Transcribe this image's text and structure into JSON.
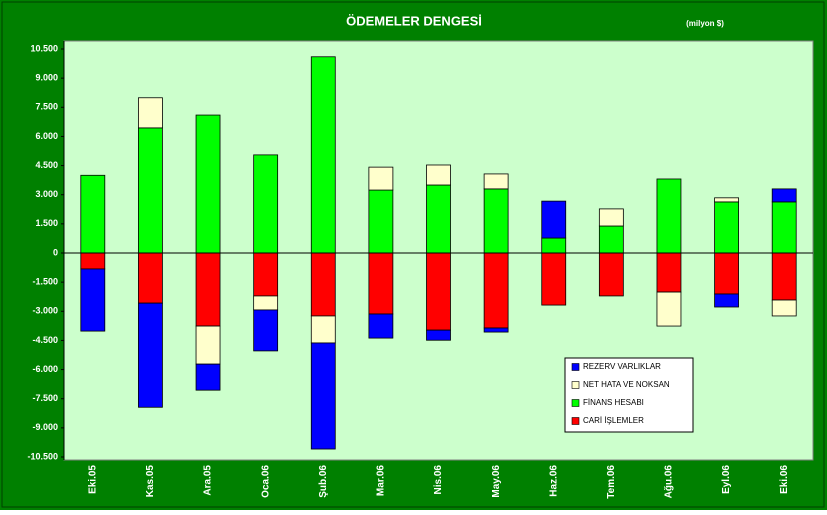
{
  "chart_data": {
    "type": "stacked_bar",
    "title": "ÖDEMELER DENGESİ",
    "subtitle": "(milyon $)",
    "categories": [
      "Eki.05",
      "Kas.05",
      "Ara.05",
      "Oca.06",
      "Şub.06",
      "Mar.06",
      "Nis.06",
      "May.06",
      "Haz.06",
      "Tem.06",
      "Ağu.06",
      "Eyl.06",
      "Eki.06"
    ],
    "series": [
      {
        "name": "CARİ İŞLEMLER",
        "color": "#ff0000",
        "values": [
          -820,
          -2580,
          -3760,
          -2210,
          -3240,
          -3140,
          -3970,
          -3860,
          -2680,
          -2210,
          -2010,
          -2110,
          -2420
        ]
      },
      {
        "name": "FİNANS HESABI",
        "color": "#00ff00",
        "values": [
          4000,
          6440,
          7100,
          5050,
          10100,
          3240,
          3500,
          3300,
          770,
          1390,
          3810,
          2630,
          2630
        ]
      },
      {
        "name": "NET HATA VE NOKSAN",
        "color": "#ffffcc",
        "values": [
          0,
          1550,
          -1960,
          -720,
          -1390,
          1180,
          1030,
          770,
          0,
          880,
          -1750,
          210,
          -820
        ]
      },
      {
        "name": "REZERV VARLIKLAR",
        "color": "#0000ff",
        "values": [
          -3200,
          -5360,
          -1340,
          -2110,
          -5460,
          -1240,
          -520,
          -210,
          1900,
          0,
          0,
          -670,
          670
        ]
      }
    ],
    "ylim": [
      -10500,
      10500
    ],
    "yticks": [
      {
        "value": 10500,
        "label": "10.500"
      },
      {
        "value": 9000,
        "label": "9.000"
      },
      {
        "value": 7500,
        "label": "7.500"
      },
      {
        "value": 6000,
        "label": "6.000"
      },
      {
        "value": 4500,
        "label": "4.500"
      },
      {
        "value": 3000,
        "label": "3.000"
      },
      {
        "value": 1500,
        "label": "1.500"
      },
      0,
      {
        "value": -1500,
        "label": "-1.500"
      },
      {
        "value": -3000,
        "label": "-3.000"
      },
      {
        "value": -4500,
        "label": "-4.500"
      },
      {
        "value": -6000,
        "label": "-6.000"
      },
      {
        "value": -7500,
        "label": "-7.500"
      },
      {
        "value": -9000,
        "label": "-9.000"
      },
      {
        "value": -10500,
        "label": "-10.500"
      }
    ],
    "grid": false
  }
}
